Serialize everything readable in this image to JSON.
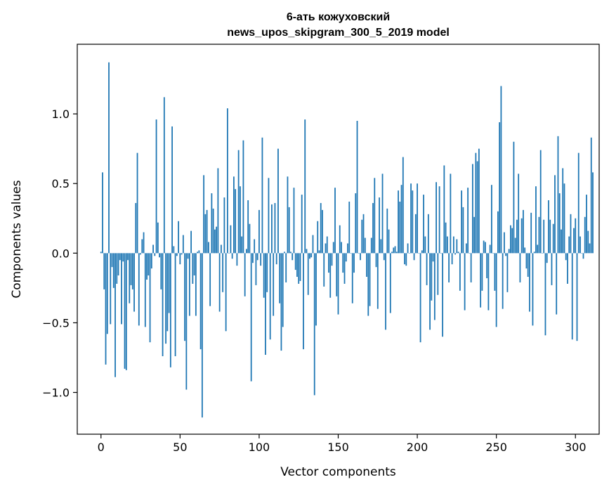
{
  "chart_data": {
    "type": "bar",
    "title": "6-ать кожуховский\nnews_upos_skipgram_300_5_2019 model",
    "xlabel": "Vector components",
    "ylabel": "Components values",
    "xlim": [
      -15,
      315
    ],
    "ylim": [
      -1.3,
      1.5
    ],
    "xticks": [
      0,
      50,
      100,
      150,
      200,
      250,
      300
    ],
    "xtick_labels": [
      "0",
      "50",
      "100",
      "150",
      "200",
      "250",
      "300"
    ],
    "yticks": [
      -1.0,
      -0.5,
      0.0,
      0.5,
      1.0
    ],
    "ytick_labels": [
      "−1.0",
      "−0.5",
      "0.0",
      "0.5",
      "1.0"
    ],
    "grid": false,
    "legend": "none",
    "bar_color": "#1f77b4",
    "x_start": 0,
    "values": [
      0.01,
      0.58,
      -0.26,
      -0.8,
      -0.58,
      1.37,
      -0.51,
      -0.1,
      -0.25,
      -0.89,
      -0.22,
      -0.16,
      -0.05,
      -0.51,
      -0.06,
      -0.83,
      -0.84,
      -0.05,
      -0.36,
      -0.23,
      -0.26,
      -0.42,
      0.36,
      0.72,
      -0.52,
      -0.01,
      0.1,
      0.15,
      -0.53,
      -0.19,
      -0.16,
      -0.64,
      -0.11,
      0.06,
      -0.02,
      0.96,
      0.22,
      -0.03,
      -0.26,
      -0.74,
      1.12,
      -0.65,
      -0.56,
      -0.43,
      -0.82,
      0.91,
      0.05,
      -0.74,
      -0.02,
      0.23,
      -0.08,
      -0.01,
      0.13,
      -0.63,
      -0.98,
      -0.04,
      -0.45,
      0.16,
      -0.22,
      -0.16,
      -0.45,
      0.01,
      0.02,
      -0.69,
      -1.18,
      0.56,
      0.28,
      0.31,
      0.08,
      -0.38,
      0.43,
      0.32,
      0.17,
      0.19,
      0.61,
      -0.42,
      0.06,
      -0.28,
      0.4,
      -0.56,
      1.04,
      0.0,
      0.2,
      -0.04,
      0.55,
      0.46,
      -0.09,
      0.74,
      0.48,
      0.12,
      0.81,
      -0.31,
      0.03,
      0.38,
      0.21,
      -0.92,
      -0.07,
      0.1,
      -0.23,
      -0.05,
      0.31,
      -0.09,
      0.83,
      -0.32,
      -0.73,
      -0.28,
      0.54,
      -0.62,
      0.35,
      -0.45,
      0.36,
      -0.08,
      0.75,
      -0.36,
      -0.7,
      -0.53,
      0.01,
      -0.21,
      0.55,
      0.33,
      0.01,
      -0.05,
      0.47,
      -0.12,
      -0.17,
      -0.22,
      -0.2,
      0.42,
      -0.69,
      0.96,
      0.03,
      -0.3,
      -0.04,
      -0.03,
      0.13,
      -1.02,
      -0.52,
      0.23,
      0.02,
      0.36,
      0.31,
      -0.24,
      0.07,
      0.12,
      -0.14,
      -0.32,
      -0.09,
      0.08,
      0.47,
      -0.31,
      -0.44,
      0.2,
      0.08,
      -0.14,
      -0.22,
      -0.06,
      0.07,
      0.37,
      0.0,
      -0.36,
      -0.14,
      0.43,
      0.95,
      0.0,
      -0.05,
      0.24,
      0.28,
      0.11,
      -0.17,
      -0.45,
      -0.38,
      0.11,
      0.36,
      0.54,
      -0.1,
      -0.4,
      0.4,
      0.1,
      0.57,
      -0.05,
      -0.55,
      0.32,
      0.17,
      -0.43,
      0.01,
      0.04,
      0.05,
      0.01,
      0.45,
      0.37,
      0.49,
      0.69,
      -0.08,
      -0.09,
      0.07,
      0.0,
      0.5,
      0.45,
      -0.05,
      0.28,
      0.5,
      0.0,
      -0.64,
      0.02,
      0.42,
      0.12,
      -0.23,
      0.28,
      -0.55,
      -0.34,
      -0.06,
      -0.48,
      0.51,
      -0.3,
      0.48,
      0.0,
      -0.6,
      0.63,
      0.22,
      0.12,
      -0.21,
      0.57,
      -0.08,
      0.12,
      -0.01,
      0.1,
      0.01,
      -0.27,
      0.45,
      0.33,
      -0.41,
      0.07,
      0.47,
      0.0,
      -0.21,
      0.64,
      0.26,
      0.72,
      0.66,
      0.75,
      -0.39,
      -0.27,
      0.09,
      0.08,
      -0.18,
      -0.41,
      0.06,
      0.49,
      0.0,
      -0.27,
      -0.53,
      0.3,
      0.94,
      1.2,
      -0.4,
      0.15,
      -0.02,
      -0.28,
      0.03,
      0.2,
      0.18,
      0.8,
      0.11,
      0.24,
      0.57,
      -0.21,
      0.25,
      0.31,
      0.04,
      -0.11,
      -0.17,
      -0.42,
      0.29,
      -0.52,
      0.01,
      0.48,
      0.06,
      0.26,
      0.74,
      0.0,
      0.24,
      -0.59,
      -0.07,
      0.38,
      0.24,
      -0.23,
      0.21,
      0.56,
      -0.44,
      0.84,
      0.43,
      0.17,
      0.61,
      0.5,
      -0.05,
      -0.22,
      0.12,
      0.28,
      -0.62,
      0.18,
      0.25,
      -0.63,
      0.72,
      0.12,
      0.0,
      -0.04,
      0.26,
      0.42,
      0.16,
      0.07,
      0.83,
      0.58
    ]
  }
}
